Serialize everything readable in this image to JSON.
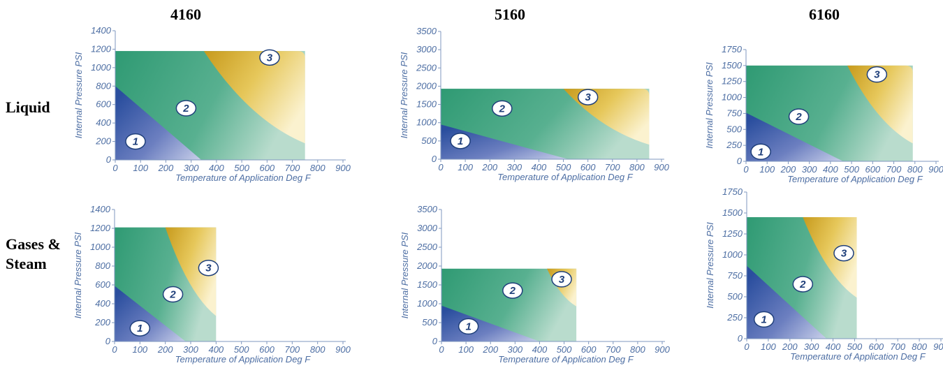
{
  "columns": [
    "4160",
    "5160",
    "6160"
  ],
  "rows": [
    "Liquid",
    "Gases &\nSteam"
  ],
  "chart_data": [
    {
      "type": "area",
      "model": "4160",
      "medium": "Liquid",
      "xlabel": "Temperature of Application Deg F",
      "ylabel": "Internal Pressure PSI",
      "xlim": [
        0,
        900
      ],
      "ylim": [
        0,
        1400
      ],
      "xticks": [
        0,
        100,
        200,
        300,
        400,
        500,
        600,
        700,
        800,
        900
      ],
      "yticks": [
        0,
        200,
        400,
        600,
        800,
        1000,
        1200,
        1400
      ],
      "bounds": {
        "tmax": 750,
        "pmax": 1180
      },
      "zone1": [
        [
          0,
          800
        ],
        [
          340,
          0
        ]
      ],
      "zone3": [
        [
          350,
          1180
        ],
        [
          750,
          180
        ]
      ],
      "labels": [
        {
          "text": "1",
          "x": 80,
          "y": 200
        },
        {
          "text": "2",
          "x": 280,
          "y": 560
        },
        {
          "text": "3",
          "x": 610,
          "y": 1110
        }
      ]
    },
    {
      "type": "area",
      "model": "5160",
      "medium": "Liquid",
      "xlabel": "Temperature of Application Deg F",
      "ylabel": "Internal Pressure PSI",
      "xlim": [
        0,
        900
      ],
      "ylim": [
        0,
        3500
      ],
      "xticks": [
        0,
        100,
        200,
        300,
        400,
        500,
        600,
        700,
        800,
        900
      ],
      "yticks": [
        0,
        500,
        1000,
        1500,
        2000,
        2500,
        3000,
        3500
      ],
      "bounds": {
        "tmax": 850,
        "pmax": 1930
      },
      "zone1": [
        [
          0,
          950
        ],
        [
          520,
          0
        ]
      ],
      "zone3": [
        [
          500,
          1930
        ],
        [
          850,
          400
        ]
      ],
      "labels": [
        {
          "text": "1",
          "x": 80,
          "y": 500
        },
        {
          "text": "2",
          "x": 250,
          "y": 1390
        },
        {
          "text": "3",
          "x": 600,
          "y": 1700
        }
      ]
    },
    {
      "type": "area",
      "model": "6160",
      "medium": "Liquid",
      "xlabel": "Temperature of Application Deg F",
      "ylabel": "Internal Pressure PSI",
      "xlim": [
        0,
        900
      ],
      "ylim": [
        0,
        1750
      ],
      "xticks": [
        0,
        100,
        200,
        300,
        400,
        500,
        600,
        700,
        800,
        900
      ],
      "yticks": [
        0,
        250,
        500,
        750,
        1000,
        1250,
        1500,
        1750
      ],
      "bounds": {
        "tmax": 790,
        "pmax": 1500
      },
      "zone1": [
        [
          0,
          760
        ],
        [
          460,
          0
        ]
      ],
      "zone3": [
        [
          480,
          1500
        ],
        [
          790,
          280
        ]
      ],
      "labels": [
        {
          "text": "1",
          "x": 70,
          "y": 150
        },
        {
          "text": "2",
          "x": 250,
          "y": 700
        },
        {
          "text": "3",
          "x": 620,
          "y": 1360
        }
      ]
    },
    {
      "type": "area",
      "model": "4160",
      "medium": "Gases & Steam",
      "xlabel": "Temperature of Application Deg F",
      "ylabel": "Internal Pressure PSI",
      "xlim": [
        0,
        900
      ],
      "ylim": [
        0,
        1400
      ],
      "xticks": [
        0,
        100,
        200,
        300,
        400,
        500,
        600,
        700,
        800,
        900
      ],
      "yticks": [
        0,
        200,
        400,
        600,
        800,
        1000,
        1200,
        1400
      ],
      "bounds": {
        "tmax": 400,
        "pmax": 1210
      },
      "zone1": [
        [
          0,
          590
        ],
        [
          280,
          0
        ]
      ],
      "zone3": [
        [
          200,
          1210
        ],
        [
          400,
          270
        ]
      ],
      "labels": [
        {
          "text": "1",
          "x": 100,
          "y": 140
        },
        {
          "text": "2",
          "x": 230,
          "y": 500
        },
        {
          "text": "3",
          "x": 370,
          "y": 780
        }
      ]
    },
    {
      "type": "area",
      "model": "5160",
      "medium": "Gases & Steam",
      "xlabel": "Temperature of Application Deg F",
      "ylabel": "Internal Pressure PSI",
      "xlim": [
        0,
        900
      ],
      "ylim": [
        0,
        3500
      ],
      "xticks": [
        0,
        100,
        200,
        300,
        400,
        500,
        600,
        700,
        800,
        900
      ],
      "yticks": [
        0,
        500,
        1000,
        1500,
        2000,
        2500,
        3000,
        3500
      ],
      "bounds": {
        "tmax": 550,
        "pmax": 1930
      },
      "zone1": [
        [
          0,
          950
        ],
        [
          400,
          0
        ]
      ],
      "zone3": [
        [
          430,
          1930
        ],
        [
          550,
          930
        ]
      ],
      "labels": [
        {
          "text": "1",
          "x": 110,
          "y": 400
        },
        {
          "text": "2",
          "x": 290,
          "y": 1350
        },
        {
          "text": "3",
          "x": 490,
          "y": 1650
        }
      ]
    },
    {
      "type": "area",
      "model": "6160",
      "medium": "Gases & Steam",
      "xlabel": "Temperature of Application Deg F",
      "ylabel": "Internal Pressure PSI",
      "xlim": [
        0,
        900
      ],
      "ylim": [
        0,
        1750
      ],
      "xticks": [
        0,
        100,
        200,
        300,
        400,
        500,
        600,
        700,
        800,
        900
      ],
      "yticks": [
        0,
        250,
        500,
        750,
        1000,
        1250,
        1500,
        1750
      ],
      "bounds": {
        "tmax": 510,
        "pmax": 1450
      },
      "zone1": [
        [
          0,
          870
        ],
        [
          370,
          0
        ]
      ],
      "zone3": [
        [
          260,
          1450
        ],
        [
          510,
          490
        ]
      ],
      "labels": [
        {
          "text": "1",
          "x": 80,
          "y": 230
        },
        {
          "text": "2",
          "x": 260,
          "y": 650
        },
        {
          "text": "3",
          "x": 450,
          "y": 1020
        }
      ]
    }
  ]
}
